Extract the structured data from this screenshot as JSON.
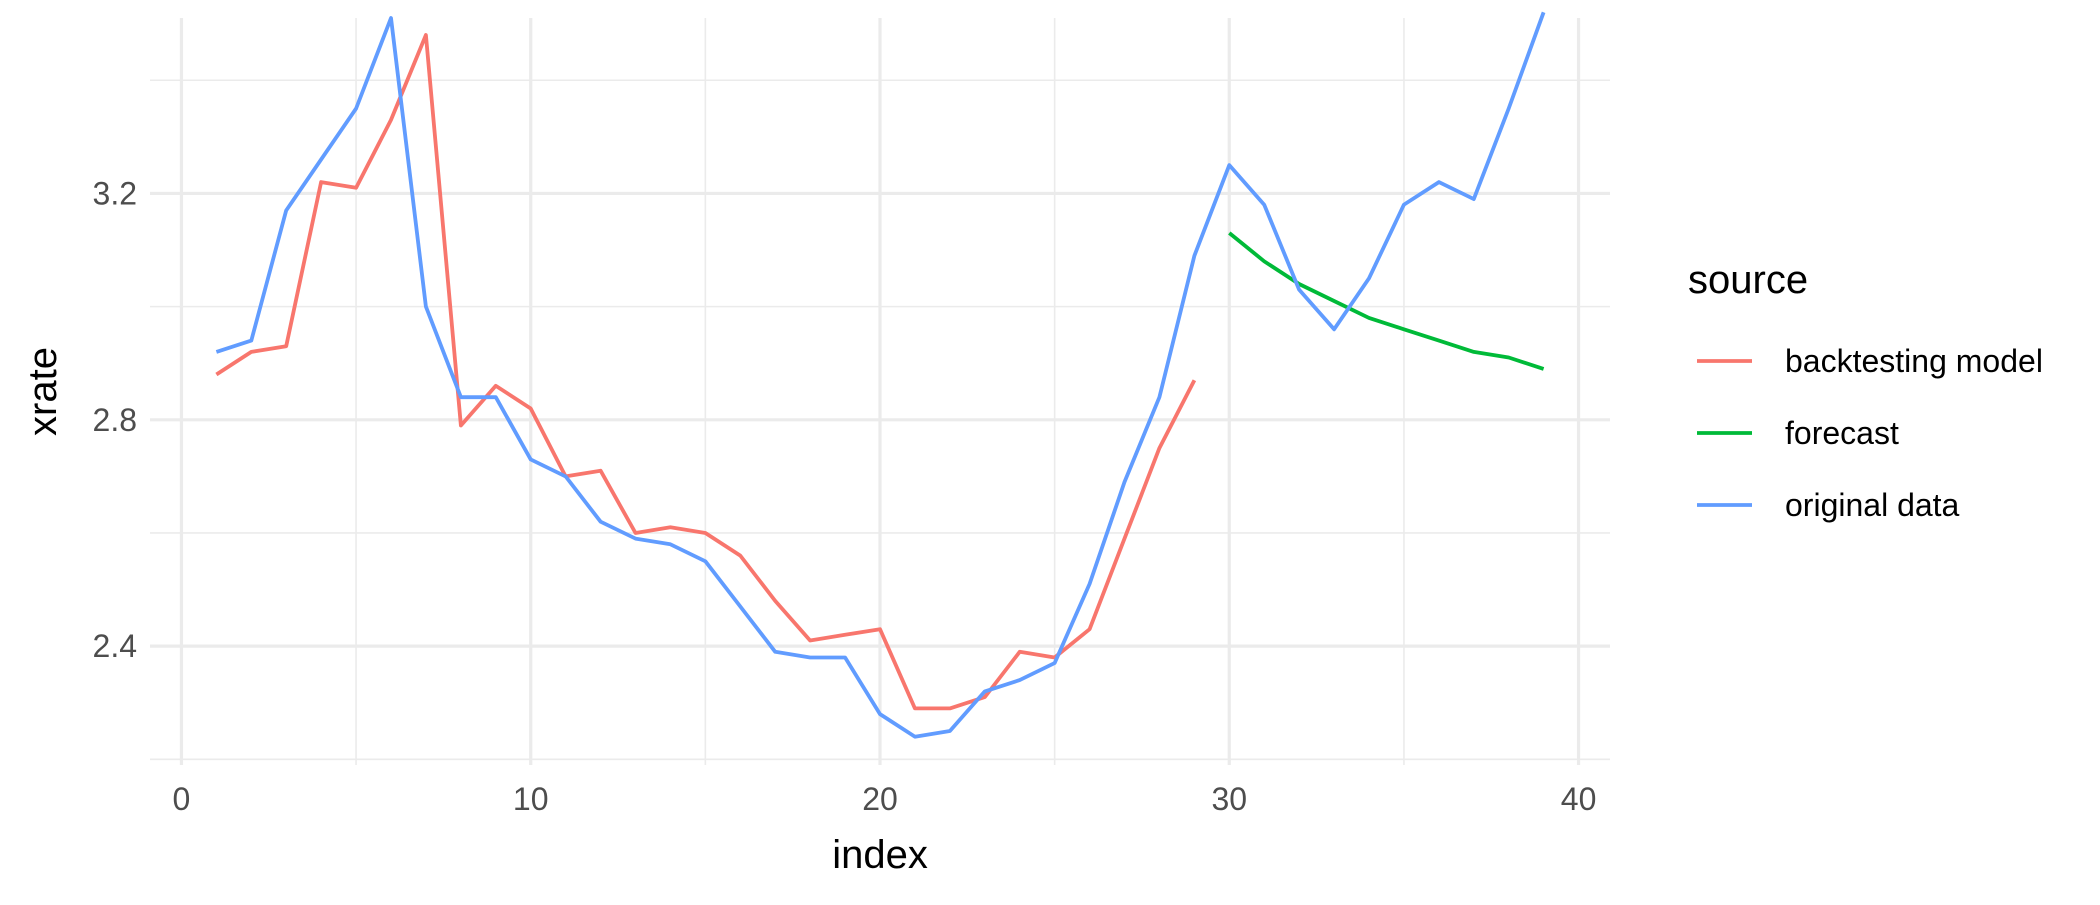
{
  "chart_data": {
    "type": "line",
    "xlabel": "index",
    "ylabel": "xrate",
    "xlim": [
      -0.9,
      40.9
    ],
    "ylim": [
      2.19,
      3.51
    ],
    "x_ticks": [
      0,
      10,
      20,
      30,
      40
    ],
    "y_ticks": [
      2.4,
      2.8,
      3.2
    ],
    "x_minor": [
      5,
      15,
      25,
      35
    ],
    "y_minor": [
      2.2,
      2.6,
      3.0,
      3.4
    ],
    "grid": true,
    "legend": {
      "title": "source",
      "position": "right"
    },
    "series": [
      {
        "name": "backtesting model",
        "color": "#F8766D",
        "x": [
          1,
          2,
          3,
          4,
          5,
          6,
          7,
          8,
          9,
          10,
          11,
          12,
          13,
          14,
          15,
          16,
          17,
          18,
          19,
          20,
          21,
          22,
          23,
          24,
          25,
          26,
          27,
          28,
          29
        ],
        "y": [
          2.88,
          2.92,
          2.93,
          3.22,
          3.21,
          3.33,
          3.48,
          2.79,
          2.86,
          2.82,
          2.7,
          2.71,
          2.6,
          2.61,
          2.6,
          2.56,
          2.48,
          2.41,
          2.42,
          2.43,
          2.29,
          2.29,
          2.31,
          2.39,
          2.38,
          2.43,
          2.59,
          2.75,
          2.87
        ]
      },
      {
        "name": "forecast",
        "color": "#00BA38",
        "x": [
          30,
          31,
          32,
          33,
          34,
          35,
          36,
          37,
          38,
          39
        ],
        "y": [
          3.13,
          3.08,
          3.04,
          3.01,
          2.98,
          2.96,
          2.94,
          2.92,
          2.91,
          2.89
        ]
      },
      {
        "name": "original data",
        "color": "#619CFF",
        "x": [
          1,
          2,
          3,
          4,
          5,
          6,
          7,
          8,
          9,
          10,
          11,
          12,
          13,
          14,
          15,
          16,
          17,
          18,
          19,
          20,
          21,
          22,
          23,
          24,
          25,
          26,
          27,
          28,
          29,
          30,
          31,
          32,
          33,
          34,
          35,
          36,
          37,
          38,
          39
        ],
        "y": [
          2.92,
          2.94,
          3.17,
          3.26,
          3.35,
          3.51,
          3.0,
          2.84,
          2.84,
          2.73,
          2.7,
          2.62,
          2.59,
          2.58,
          2.55,
          2.47,
          2.39,
          2.38,
          2.38,
          2.28,
          2.24,
          2.25,
          2.32,
          2.34,
          2.37,
          2.51,
          2.69,
          2.84,
          3.09,
          3.25,
          3.18,
          3.03,
          2.96,
          3.05,
          3.18,
          3.22,
          3.19,
          3.35,
          3.52
        ]
      }
    ]
  }
}
